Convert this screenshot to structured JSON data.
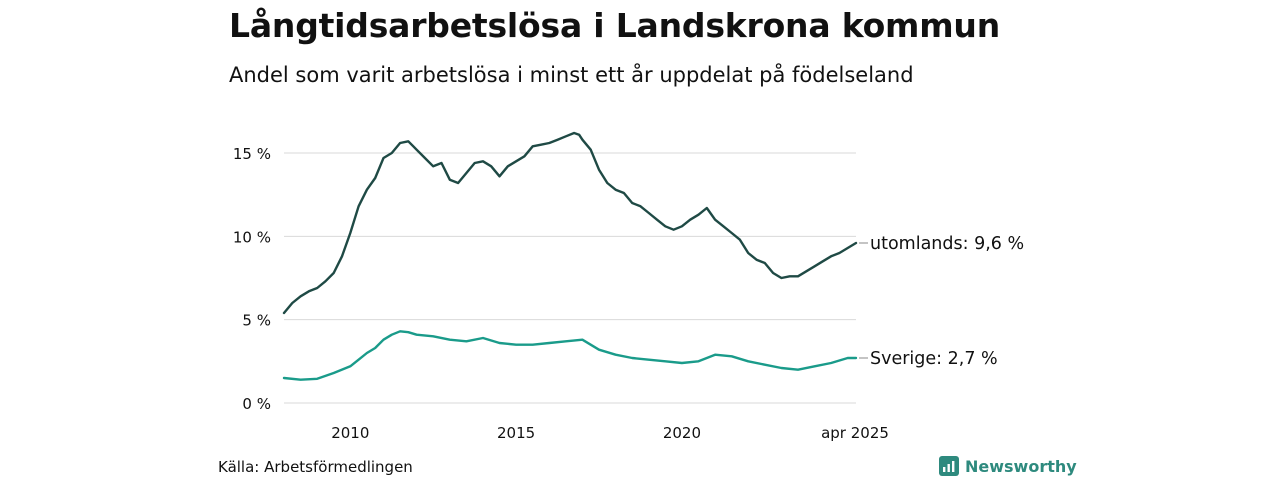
{
  "title": "Långtidsarbetslösa i Landskrona kommun",
  "subtitle": "Andel som varit arbetslösa i minst ett år uppdelat på födelseland",
  "source": "Källa: Arbetsförmedlingen",
  "brand": "Newsworthy",
  "colors": {
    "utomlands": "#1f4a45",
    "sverige": "#1a9b8a",
    "grid": "#d9d9d9",
    "brand": "#2e8a7e"
  },
  "chart_data": {
    "type": "line",
    "xlim": [
      2008.0,
      2025.25
    ],
    "ylim": [
      0,
      16.5
    ],
    "y_ticks": [
      0,
      5,
      10,
      15
    ],
    "y_tick_labels": [
      "0 %",
      "5 %",
      "10 %",
      "15 %"
    ],
    "x_ticks": [
      2010,
      2015,
      2020,
      2025.25
    ],
    "x_tick_labels": [
      "2010",
      "2015",
      "2020",
      "apr 2025"
    ],
    "grid": true,
    "legend": "direct labels at line ends",
    "series": [
      {
        "key": "utomlands",
        "label": "utomlands: 9,6 %",
        "x": [
          2008.0,
          2008.25,
          2008.5,
          2008.75,
          2009.0,
          2009.25,
          2009.5,
          2009.75,
          2010.0,
          2010.25,
          2010.5,
          2010.75,
          2011.0,
          2011.25,
          2011.5,
          2011.75,
          2011.9,
          2012.0,
          2012.25,
          2012.5,
          2012.75,
          2013.0,
          2013.25,
          2013.5,
          2013.75,
          2014.0,
          2014.25,
          2014.5,
          2014.75,
          2015.0,
          2015.25,
          2015.5,
          2015.75,
          2016.0,
          2016.25,
          2016.5,
          2016.75,
          2016.9,
          2017.0,
          2017.25,
          2017.5,
          2017.75,
          2018.0,
          2018.25,
          2018.5,
          2018.75,
          2019.0,
          2019.25,
          2019.5,
          2019.75,
          2020.0,
          2020.25,
          2020.5,
          2020.75,
          2021.0,
          2021.25,
          2021.5,
          2021.75,
          2022.0,
          2022.25,
          2022.5,
          2022.75,
          2023.0,
          2023.25,
          2023.5,
          2023.75,
          2024.0,
          2024.25,
          2024.5,
          2024.75,
          2025.0,
          2025.25
        ],
        "values": [
          5.4,
          6.0,
          6.4,
          6.7,
          6.9,
          7.3,
          7.8,
          8.8,
          10.2,
          11.8,
          12.8,
          13.5,
          14.7,
          15.0,
          15.6,
          15.7,
          15.4,
          15.2,
          14.7,
          14.2,
          14.4,
          13.4,
          13.2,
          13.8,
          14.4,
          14.5,
          14.2,
          13.6,
          14.2,
          14.5,
          14.8,
          15.4,
          15.5,
          15.6,
          15.8,
          16.0,
          16.2,
          16.1,
          15.8,
          15.2,
          14.0,
          13.2,
          12.8,
          12.6,
          12.0,
          11.8,
          11.4,
          11.0,
          10.6,
          10.4,
          10.6,
          11.0,
          11.3,
          11.7,
          11.0,
          10.6,
          10.2,
          9.8,
          9.0,
          8.6,
          8.4,
          7.8,
          7.5,
          7.6,
          7.6,
          7.9,
          8.2,
          8.5,
          8.8,
          9.0,
          9.3,
          9.6
        ]
      },
      {
        "key": "sverige",
        "label": "Sverige: 2,7 %",
        "x": [
          2008.0,
          2008.5,
          2009.0,
          2009.5,
          2010.0,
          2010.25,
          2010.5,
          2010.75,
          2011.0,
          2011.25,
          2011.5,
          2011.75,
          2012.0,
          2012.5,
          2013.0,
          2013.5,
          2014.0,
          2014.5,
          2015.0,
          2015.5,
          2016.0,
          2016.5,
          2017.0,
          2017.25,
          2017.5,
          2018.0,
          2018.5,
          2019.0,
          2019.5,
          2020.0,
          2020.5,
          2021.0,
          2021.5,
          2022.0,
          2022.5,
          2023.0,
          2023.5,
          2024.0,
          2024.5,
          2025.0,
          2025.25
        ],
        "values": [
          1.5,
          1.4,
          1.45,
          1.8,
          2.2,
          2.6,
          3.0,
          3.3,
          3.8,
          4.1,
          4.3,
          4.25,
          4.1,
          4.0,
          3.8,
          3.7,
          3.9,
          3.6,
          3.5,
          3.5,
          3.6,
          3.7,
          3.8,
          3.5,
          3.2,
          2.9,
          2.7,
          2.6,
          2.5,
          2.4,
          2.5,
          2.9,
          2.8,
          2.5,
          2.3,
          2.1,
          2.0,
          2.2,
          2.4,
          2.7,
          2.7
        ]
      }
    ]
  }
}
